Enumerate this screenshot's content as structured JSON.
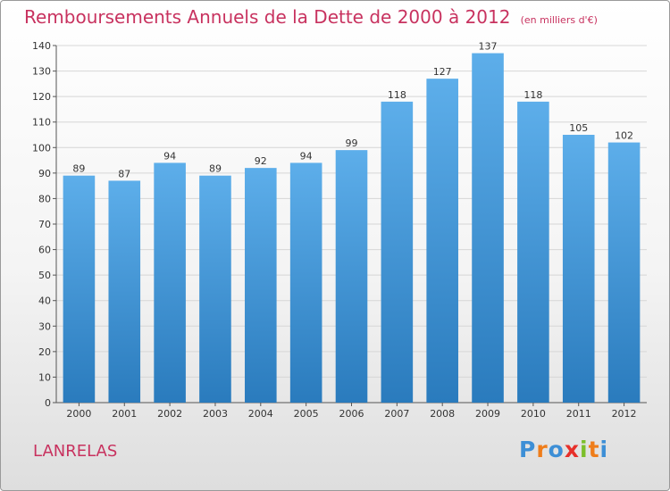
{
  "chart_data": {
    "type": "bar",
    "title": "Remboursements Annuels de la Dette de 2000 à 2012",
    "subtitle": "(en milliers d'€)",
    "categories": [
      "2000",
      "2001",
      "2002",
      "2003",
      "2004",
      "2005",
      "2006",
      "2007",
      "2008",
      "2009",
      "2010",
      "2011",
      "2012"
    ],
    "values": [
      89,
      87,
      94,
      89,
      92,
      94,
      99,
      118,
      127,
      137,
      118,
      105,
      102
    ],
    "ylim": [
      0,
      140
    ],
    "yticks": [
      0,
      10,
      20,
      30,
      40,
      50,
      60,
      70,
      80,
      90,
      100,
      110,
      120,
      130,
      140
    ],
    "grid": true,
    "data_labels": true,
    "colors": {
      "bar_top": "#5daeea",
      "bar_bottom": "#2a7bbd",
      "grid": "#d6d6d6",
      "title": "#c8325f"
    }
  },
  "place_name": "LANRELAS",
  "logo": {
    "letters": [
      "P",
      "r",
      "o",
      "x",
      "i",
      "t",
      "i"
    ],
    "colors": [
      "#3d8fd6",
      "#ef7d1a",
      "#3d8fd6",
      "#e7302a",
      "#7cbf2b",
      "#ef7d1a",
      "#3d8fd6"
    ]
  }
}
